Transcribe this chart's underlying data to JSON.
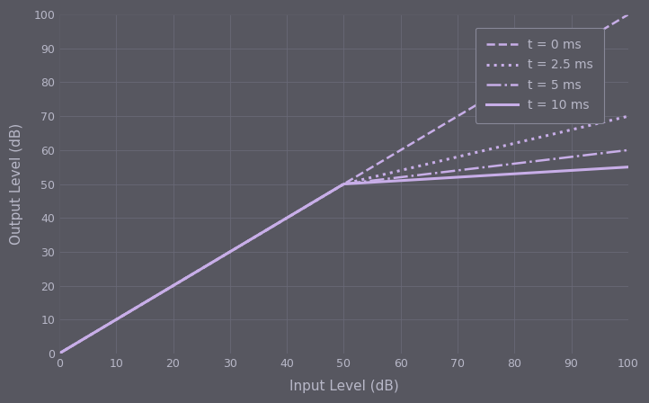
{
  "xlabel": "Input Level (dB)",
  "ylabel": "Output Level (dB)",
  "xlim": [
    0,
    100
  ],
  "ylim": [
    0,
    100
  ],
  "xticks": [
    0,
    10,
    20,
    30,
    40,
    50,
    60,
    70,
    80,
    90,
    100
  ],
  "yticks": [
    0,
    10,
    20,
    30,
    40,
    50,
    60,
    70,
    80,
    90,
    100
  ],
  "background_color": "#575760",
  "axes_facecolor": "#575760",
  "grid_color": "#7070808",
  "text_color": "#b8b8c8",
  "line_color": "#c8aee8",
  "figsize": [
    7.22,
    4.48
  ],
  "dpi": 100,
  "threshold": 50,
  "below_slope": 1.0,
  "series": [
    {
      "label": "t = 0 ms",
      "linestyle": "--",
      "linewidth": 1.8,
      "above_slope": 1.0
    },
    {
      "label": "t = 2.5 ms",
      "linestyle": ":",
      "linewidth": 2.2,
      "above_slope": 0.4
    },
    {
      "label": "t = 5 ms",
      "linestyle": "-.",
      "linewidth": 1.8,
      "above_slope": 0.2
    },
    {
      "label": "t = 10 ms",
      "linestyle": "-",
      "linewidth": 2.2,
      "above_slope": 0.1
    }
  ],
  "legend_facecolor": "#575760",
  "legend_edgecolor": "#888898",
  "legend_fontsize": 10,
  "xlabel_fontsize": 11,
  "ylabel_fontsize": 11,
  "tick_labelsize": 9
}
